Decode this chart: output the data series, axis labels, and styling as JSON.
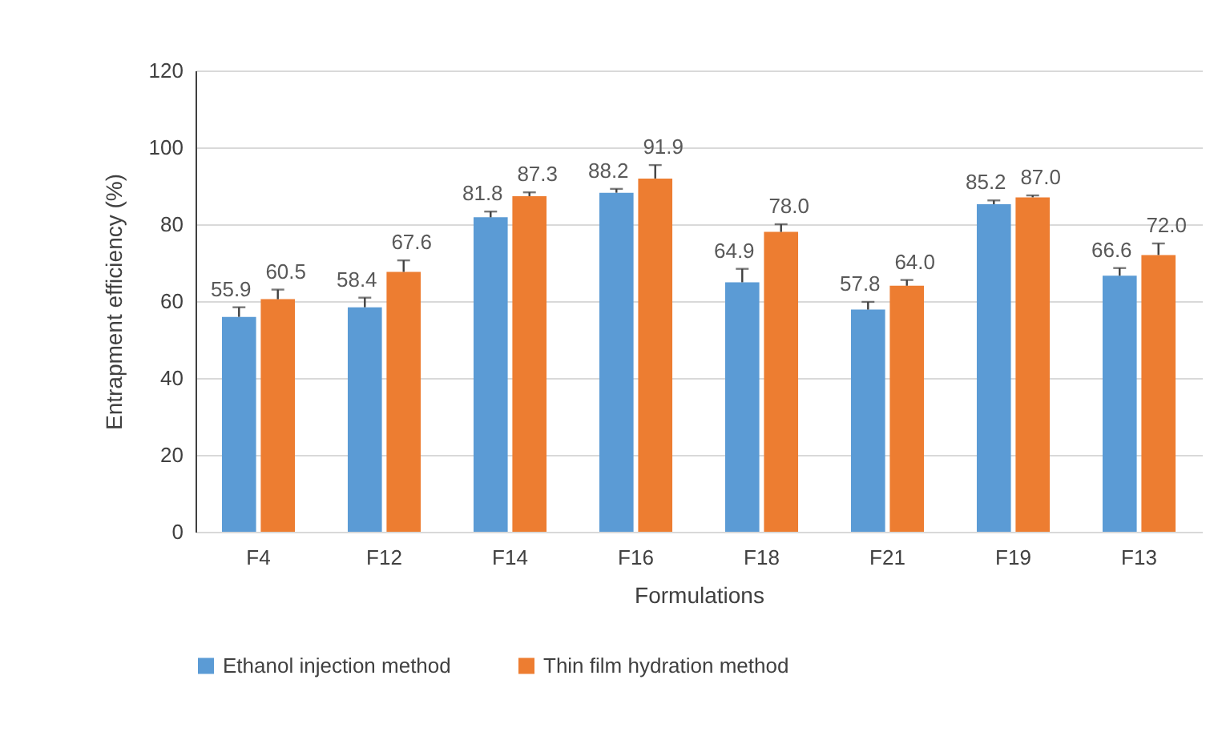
{
  "chart_data": {
    "type": "bar",
    "xlabel": "Formulations",
    "ylabel": "Entrapment efficiency (%)",
    "categories": [
      "F4",
      "F12",
      "F14",
      "F16",
      "F18",
      "F21",
      "F19",
      "F13"
    ],
    "series": [
      {
        "name": "Ethanol injection method",
        "color": "#5b9bd5",
        "values": [
          55.9,
          58.4,
          81.8,
          88.2,
          64.9,
          57.8,
          85.2,
          66.6
        ],
        "errors": [
          [
            55.9,
            58.4
          ],
          [
            58.4,
            60.9
          ],
          [
            81.8,
            83.3
          ],
          [
            88.2,
            89.2
          ],
          [
            64.9,
            68.4
          ],
          [
            57.8,
            59.8
          ],
          [
            85.2,
            86.2
          ],
          [
            66.6,
            68.6
          ]
        ]
      },
      {
        "name": "Thin film hydration method",
        "color": "#ed7d31",
        "values": [
          60.5,
          67.6,
          87.3,
          91.9,
          78.0,
          64.0,
          87.0,
          72.0
        ],
        "errors": [
          [
            60.5,
            63.0
          ],
          [
            67.6,
            70.6
          ],
          [
            87.3,
            88.3
          ],
          [
            91.9,
            95.4
          ],
          [
            78.0,
            80.0
          ],
          [
            64.0,
            65.5
          ],
          [
            87.0,
            87.5
          ],
          [
            72.0,
            75.0
          ]
        ],
        "value_labels": [
          "60.5",
          "67.6",
          "87.3",
          "91.9",
          "78.0",
          "64.0",
          "87.0",
          "72.0"
        ]
      }
    ],
    "ylim": [
      0,
      120
    ],
    "yticks": [
      0,
      20,
      40,
      60,
      80,
      100,
      120
    ],
    "grid": "y",
    "legend": "bottom",
    "data_labels": true
  }
}
